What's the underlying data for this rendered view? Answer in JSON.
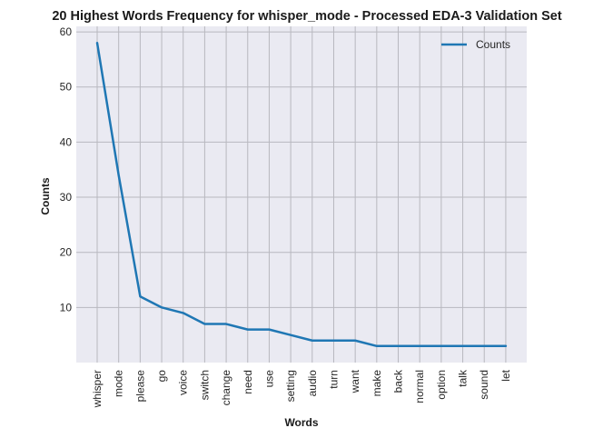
{
  "chart_data": {
    "type": "line",
    "title": "20 Highest Words Frequency for whisper_mode - Processed EDA-3 Validation Set",
    "xlabel": "Words",
    "ylabel": "Counts",
    "categories": [
      "whisper",
      "mode",
      "please",
      "go",
      "voice",
      "switch",
      "change",
      "need",
      "use",
      "setting",
      "audio",
      "turn",
      "want",
      "make",
      "back",
      "normal",
      "option",
      "talk",
      "sound",
      "let"
    ],
    "series": [
      {
        "name": "Counts",
        "values": [
          58,
          34,
          12,
          10,
          9,
          7,
          7,
          6,
          6,
          5,
          4,
          4,
          4,
          3,
          3,
          3,
          3,
          3,
          3,
          3
        ],
        "color": "#1f77b4"
      }
    ],
    "ylim": [
      0,
      61
    ],
    "yticks": [
      10,
      20,
      30,
      40,
      50,
      60
    ],
    "grid": true,
    "legend_position": "top-right",
    "background": "#eaeaf2",
    "grid_color": "#b8b8bf"
  }
}
